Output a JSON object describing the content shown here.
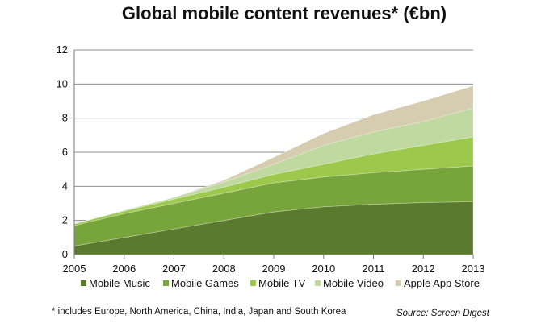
{
  "chart_data": {
    "type": "area",
    "title": "Global mobile content revenues* (€bn)",
    "x": [
      "2005",
      "2006",
      "2007",
      "2008",
      "2009",
      "2010",
      "2011",
      "2012",
      "2013"
    ],
    "ylim": [
      0,
      12
    ],
    "yticks": [
      "0",
      "2",
      "4",
      "6",
      "8",
      "10",
      "12"
    ],
    "stacked": true,
    "grid": true,
    "legend_position": "bottom",
    "series": [
      {
        "name": "Mobile Music",
        "values": [
          0.5,
          1.0,
          1.5,
          2.0,
          2.5,
          2.8,
          2.95,
          3.05,
          3.1
        ],
        "color": "#5b7a2e"
      },
      {
        "name": "Mobile Games",
        "values": [
          1.2,
          1.4,
          1.5,
          1.6,
          1.7,
          1.75,
          1.85,
          1.95,
          2.1
        ],
        "color": "#78a43c"
      },
      {
        "name": "Mobile TV",
        "values": [
          0.1,
          0.15,
          0.25,
          0.35,
          0.5,
          0.75,
          1.1,
          1.4,
          1.7
        ],
        "color": "#9cc84c"
      },
      {
        "name": "Mobile Video",
        "values": [
          0.0,
          0.05,
          0.1,
          0.3,
          0.6,
          1.1,
          1.3,
          1.4,
          1.7
        ],
        "color": "#c0d9a0"
      },
      {
        "name": "Apple App Store",
        "values": [
          0.0,
          0.0,
          0.0,
          0.1,
          0.4,
          0.7,
          1.0,
          1.2,
          1.3
        ],
        "color": "#d6ccb0"
      }
    ],
    "footnote": "* includes Europe, North America, China, India, Japan and South Korea",
    "source": "Source: Screen Digest"
  }
}
